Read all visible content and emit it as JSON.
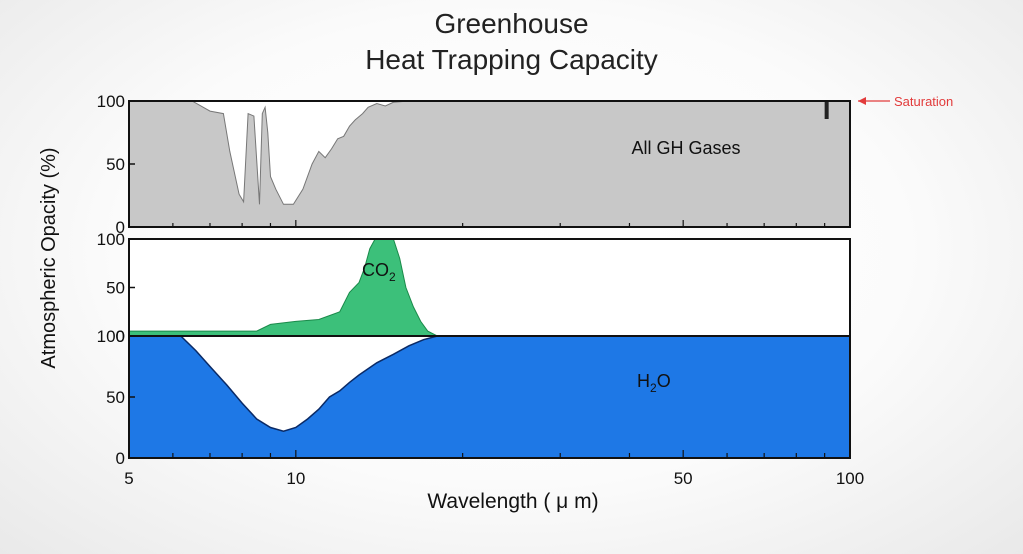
{
  "title_line1": "Greenhouse",
  "title_line2": "Heat Trapping Capacity",
  "ylabel": "Atmospheric Opacity (%)",
  "xlabel": "Wavelength ( μ m)",
  "saturation_label": "Saturation",
  "colors": {
    "all_gh_fill": "#c8c8c8",
    "co2_fill": "#3cc07a",
    "h2o_fill": "#1e78e6",
    "saturation_label": "#e23b3b",
    "axis": "#111111"
  },
  "chart_data": [
    {
      "type": "area",
      "panel": "top",
      "series_label": "All GH Gases",
      "x_scale": "log",
      "xlim": [
        5,
        100
      ],
      "ylim": [
        0,
        100
      ],
      "yticks": [
        "100",
        "50",
        "0"
      ],
      "xticks": [],
      "x": [
        5,
        6.5,
        7.0,
        7.4,
        7.6,
        7.9,
        8.05,
        8.2,
        8.4,
        8.6,
        8.7,
        8.8,
        8.9,
        9.0,
        9.2,
        9.5,
        9.9,
        10.3,
        10.7,
        11.0,
        11.3,
        11.6,
        11.9,
        12.2,
        12.5,
        12.8,
        13.2,
        13.5,
        14.0,
        14.5,
        15.0,
        16,
        18,
        20,
        100
      ],
      "y": [
        100,
        100,
        92,
        90,
        60,
        26,
        20,
        90,
        88,
        18,
        90,
        95,
        75,
        40,
        30,
        18,
        18,
        30,
        50,
        60,
        55,
        62,
        70,
        72,
        80,
        85,
        90,
        95,
        98,
        96,
        99,
        100,
        100,
        100,
        100
      ],
      "annotation": "Saturation"
    },
    {
      "type": "area",
      "panel": "middle",
      "series_label": "CO2",
      "x_scale": "log",
      "xlim": [
        5,
        100
      ],
      "ylim": [
        0,
        100
      ],
      "yticks": [
        "100",
        "50",
        "0"
      ],
      "x": [
        5,
        8.5,
        9.0,
        10.0,
        11.0,
        12.0,
        12.5,
        13.0,
        13.3,
        13.6,
        13.9,
        14.3,
        14.7,
        15.0,
        15.4,
        15.8,
        16.3,
        16.8,
        17.3,
        18.0,
        100
      ],
      "y": [
        5,
        5,
        12,
        15,
        17,
        25,
        45,
        55,
        70,
        90,
        100,
        100,
        100,
        100,
        80,
        50,
        30,
        15,
        5,
        0,
        0
      ]
    },
    {
      "type": "area",
      "panel": "bottom",
      "series_label": "H2O",
      "x_scale": "log",
      "xlim": [
        5,
        100
      ],
      "ylim": [
        0,
        100
      ],
      "yticks": [
        "100",
        "50",
        "0"
      ],
      "xticks": [
        "5",
        "10",
        "50",
        "100"
      ],
      "x": [
        5,
        6.2,
        6.6,
        7.0,
        7.5,
        8.0,
        8.5,
        9.0,
        9.5,
        10.0,
        10.5,
        11.0,
        11.5,
        12.0,
        12.5,
        13.0,
        14.0,
        15.0,
        16.0,
        17.0,
        18.0,
        100
      ],
      "y": [
        100,
        100,
        88,
        75,
        60,
        45,
        32,
        25,
        22,
        25,
        32,
        40,
        50,
        55,
        62,
        68,
        78,
        85,
        92,
        97,
        100,
        100
      ]
    }
  ]
}
